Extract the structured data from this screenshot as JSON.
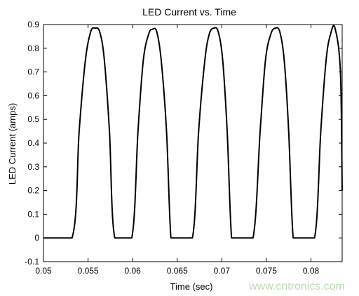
{
  "chart_data": {
    "type": "line",
    "title": "LED Current vs. Time",
    "xlabel": "Time (sec)",
    "ylabel": "LED Current (amps)",
    "xlim": [
      0.05,
      0.0835
    ],
    "ylim": [
      -0.1,
      0.9
    ],
    "xticks": [
      0.05,
      0.055,
      0.06,
      0.065,
      0.07,
      0.075,
      0.08
    ],
    "xtick_labels": [
      "0.05",
      "0.055",
      "0.06",
      "0.065",
      "0.07",
      "0.075",
      "0.08"
    ],
    "yticks": [
      -0.1,
      0,
      0.1,
      0.2,
      0.3,
      0.4,
      0.5,
      0.6,
      0.7,
      0.8,
      0.9
    ],
    "ytick_labels": [
      "-0.1",
      "0",
      "0.1",
      "0.2",
      "0.3",
      "0.4",
      "0.5",
      "0.6",
      "0.7",
      "0.8",
      "0.9"
    ],
    "grid": false,
    "color": "#000000",
    "series": [
      {
        "x": [
          0.05,
          0.0532,
          0.054,
          0.0547,
          0.0553,
          0.0558,
          0.0563,
          0.0568,
          0.0574,
          0.058,
          0.0599,
          0.0606,
          0.0612,
          0.0618,
          0.0622,
          0.0627,
          0.0632,
          0.0638,
          0.0643,
          0.0649,
          0.0667,
          0.0674,
          0.0681,
          0.0686,
          0.0691,
          0.0696,
          0.0701,
          0.0706,
          0.0711,
          0.0717,
          0.0735,
          0.0743,
          0.0749,
          0.0755,
          0.076,
          0.0765,
          0.077,
          0.0775,
          0.078,
          0.0786,
          0.0804,
          0.0811,
          0.0817,
          0.0822,
          0.0827,
          0.0833,
          0.0835
        ],
        "y": [
          0,
          0,
          0.45,
          0.75,
          0.87,
          0.885,
          0.87,
          0.76,
          0.45,
          0,
          0,
          0.45,
          0.75,
          0.86,
          0.88,
          0.87,
          0.75,
          0.45,
          0,
          0,
          0,
          0.45,
          0.75,
          0.86,
          0.885,
          0.87,
          0.75,
          0.45,
          0,
          0,
          0,
          0.45,
          0.75,
          0.86,
          0.885,
          0.87,
          0.75,
          0.45,
          0,
          0,
          0,
          0.45,
          0.75,
          0.86,
          0.885,
          0.7,
          0.2
        ]
      }
    ]
  },
  "watermark": "www.cntronics.com"
}
